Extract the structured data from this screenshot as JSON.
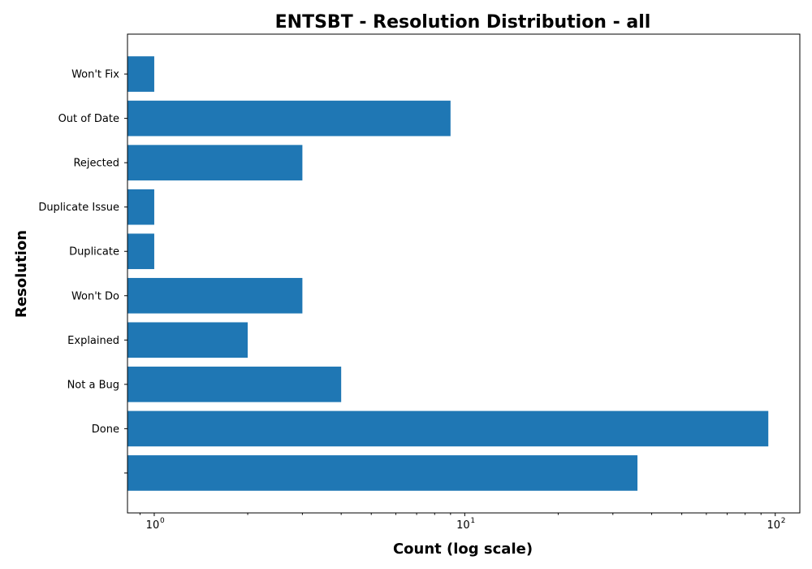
{
  "chart_data": {
    "type": "bar",
    "orientation": "horizontal",
    "title": "ENTSBT - Resolution Distribution - all",
    "xlabel": "Count (log scale)",
    "ylabel": "Resolution",
    "x_scale": "log",
    "xlim": [
      0.82,
      120
    ],
    "x_ticks": [
      {
        "value": 1,
        "base": "10",
        "exp": "0"
      },
      {
        "value": 10,
        "base": "10",
        "exp": "1"
      },
      {
        "value": 100,
        "base": "10",
        "exp": "2"
      }
    ],
    "bar_color": "#1f77b4",
    "grid": false,
    "categories": [
      "",
      "Done",
      "Not a Bug",
      "Explained",
      "Won't Do",
      "Duplicate",
      "Duplicate Issue",
      "Rejected",
      "Out of Date",
      "Won't Fix"
    ],
    "values": [
      36,
      95,
      4,
      2,
      3,
      1,
      1,
      3,
      9,
      1
    ]
  }
}
